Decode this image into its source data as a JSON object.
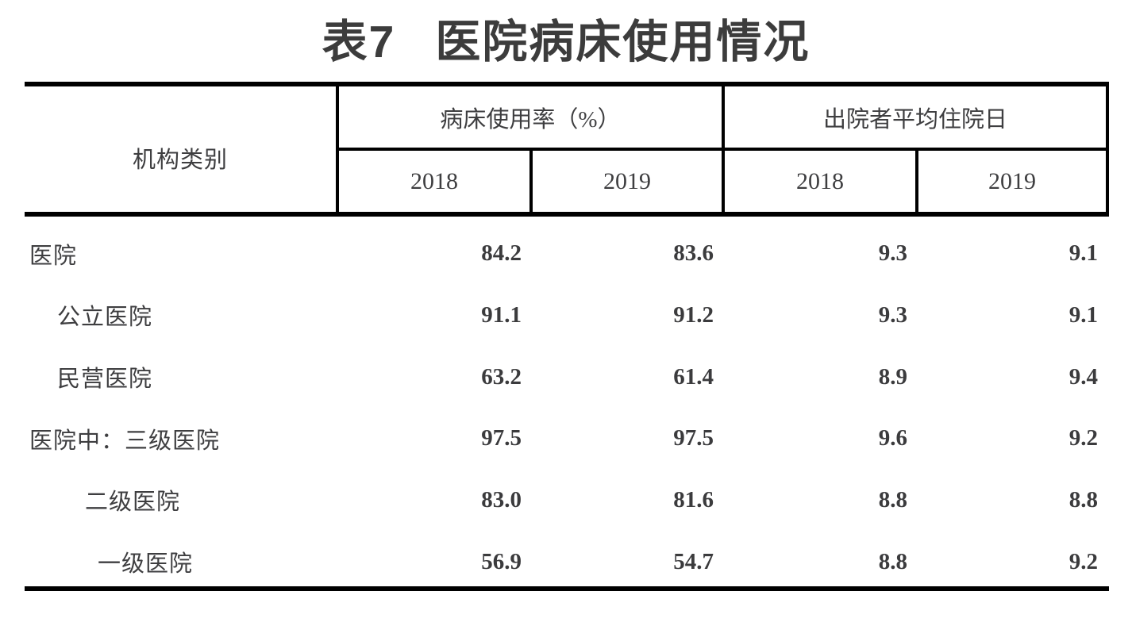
{
  "page": {
    "title": {
      "prefix": "表7",
      "text": "医院病床使用情况"
    }
  },
  "table": {
    "header": {
      "category": "机构类别",
      "groups": [
        {
          "label": "病床使用率（%）",
          "years": [
            "2018",
            "2019"
          ]
        },
        {
          "label": "出院者平均住院日",
          "years": [
            "2018",
            "2019"
          ]
        }
      ]
    },
    "rows": [
      {
        "label": "医院",
        "values": [
          "84.2",
          "83.6",
          "9.3",
          "9.1"
        ]
      },
      {
        "label": "公立医院",
        "values": [
          "91.1",
          "91.2",
          "9.3",
          "9.1"
        ]
      },
      {
        "label": "民营医院",
        "values": [
          "63.2",
          "61.4",
          "8.9",
          "9.4"
        ]
      },
      {
        "label": "医院中：三级医院",
        "values": [
          "97.5",
          "97.5",
          "9.6",
          "9.2"
        ]
      },
      {
        "label": "二级医院",
        "values": [
          "83.0",
          "81.6",
          "8.8",
          "8.8"
        ]
      },
      {
        "label": "一级医院",
        "values": [
          "56.9",
          "54.7",
          "8.8",
          "9.2"
        ]
      }
    ]
  },
  "chart_data": {
    "type": "table",
    "title": "表7 医院病床使用情况",
    "columns": [
      "机构类别",
      "病床使用率（%） 2018",
      "病床使用率（%） 2019",
      "出院者平均住院日 2018",
      "出院者平均住院日 2019"
    ],
    "rows": [
      [
        "医院",
        84.2,
        83.6,
        9.3,
        9.1
      ],
      [
        "公立医院",
        91.1,
        91.2,
        9.3,
        9.1
      ],
      [
        "民营医院",
        63.2,
        61.4,
        8.9,
        9.4
      ],
      [
        "医院中：三级医院",
        97.5,
        97.5,
        9.6,
        9.2
      ],
      [
        "二级医院",
        83.0,
        81.6,
        8.8,
        8.8
      ],
      [
        "一级医院",
        56.9,
        54.7,
        8.8,
        9.2
      ]
    ]
  }
}
